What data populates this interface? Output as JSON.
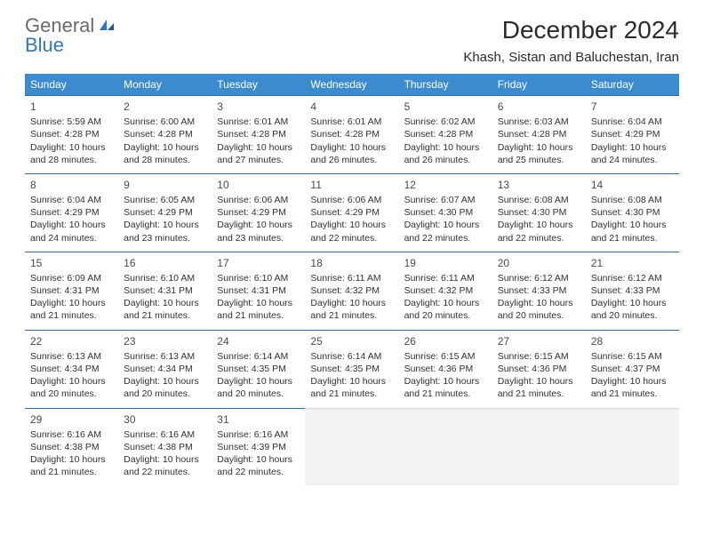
{
  "logo": {
    "text1": "General",
    "text2": "Blue"
  },
  "title": "December 2024",
  "location": "Khash, Sistan and Baluchestan, Iran",
  "colors": {
    "header_bg": "#3b8bce",
    "header_text": "#ffffff",
    "cell_border": "#2f6ea8",
    "empty_bg": "#f2f2f2",
    "body_text": "#303030",
    "logo_gray": "#6b6b6b",
    "logo_blue": "#2f78b9"
  },
  "columns": [
    "Sunday",
    "Monday",
    "Tuesday",
    "Wednesday",
    "Thursday",
    "Friday",
    "Saturday"
  ],
  "weeks": [
    [
      {
        "day": "1",
        "sunrise": "5:59 AM",
        "sunset": "4:28 PM",
        "daylight": "10 hours and 28 minutes."
      },
      {
        "day": "2",
        "sunrise": "6:00 AM",
        "sunset": "4:28 PM",
        "daylight": "10 hours and 28 minutes."
      },
      {
        "day": "3",
        "sunrise": "6:01 AM",
        "sunset": "4:28 PM",
        "daylight": "10 hours and 27 minutes."
      },
      {
        "day": "4",
        "sunrise": "6:01 AM",
        "sunset": "4:28 PM",
        "daylight": "10 hours and 26 minutes."
      },
      {
        "day": "5",
        "sunrise": "6:02 AM",
        "sunset": "4:28 PM",
        "daylight": "10 hours and 26 minutes."
      },
      {
        "day": "6",
        "sunrise": "6:03 AM",
        "sunset": "4:28 PM",
        "daylight": "10 hours and 25 minutes."
      },
      {
        "day": "7",
        "sunrise": "6:04 AM",
        "sunset": "4:29 PM",
        "daylight": "10 hours and 24 minutes."
      }
    ],
    [
      {
        "day": "8",
        "sunrise": "6:04 AM",
        "sunset": "4:29 PM",
        "daylight": "10 hours and 24 minutes."
      },
      {
        "day": "9",
        "sunrise": "6:05 AM",
        "sunset": "4:29 PM",
        "daylight": "10 hours and 23 minutes."
      },
      {
        "day": "10",
        "sunrise": "6:06 AM",
        "sunset": "4:29 PM",
        "daylight": "10 hours and 23 minutes."
      },
      {
        "day": "11",
        "sunrise": "6:06 AM",
        "sunset": "4:29 PM",
        "daylight": "10 hours and 22 minutes."
      },
      {
        "day": "12",
        "sunrise": "6:07 AM",
        "sunset": "4:30 PM",
        "daylight": "10 hours and 22 minutes."
      },
      {
        "day": "13",
        "sunrise": "6:08 AM",
        "sunset": "4:30 PM",
        "daylight": "10 hours and 22 minutes."
      },
      {
        "day": "14",
        "sunrise": "6:08 AM",
        "sunset": "4:30 PM",
        "daylight": "10 hours and 21 minutes."
      }
    ],
    [
      {
        "day": "15",
        "sunrise": "6:09 AM",
        "sunset": "4:31 PM",
        "daylight": "10 hours and 21 minutes."
      },
      {
        "day": "16",
        "sunrise": "6:10 AM",
        "sunset": "4:31 PM",
        "daylight": "10 hours and 21 minutes."
      },
      {
        "day": "17",
        "sunrise": "6:10 AM",
        "sunset": "4:31 PM",
        "daylight": "10 hours and 21 minutes."
      },
      {
        "day": "18",
        "sunrise": "6:11 AM",
        "sunset": "4:32 PM",
        "daylight": "10 hours and 21 minutes."
      },
      {
        "day": "19",
        "sunrise": "6:11 AM",
        "sunset": "4:32 PM",
        "daylight": "10 hours and 20 minutes."
      },
      {
        "day": "20",
        "sunrise": "6:12 AM",
        "sunset": "4:33 PM",
        "daylight": "10 hours and 20 minutes."
      },
      {
        "day": "21",
        "sunrise": "6:12 AM",
        "sunset": "4:33 PM",
        "daylight": "10 hours and 20 minutes."
      }
    ],
    [
      {
        "day": "22",
        "sunrise": "6:13 AM",
        "sunset": "4:34 PM",
        "daylight": "10 hours and 20 minutes."
      },
      {
        "day": "23",
        "sunrise": "6:13 AM",
        "sunset": "4:34 PM",
        "daylight": "10 hours and 20 minutes."
      },
      {
        "day": "24",
        "sunrise": "6:14 AM",
        "sunset": "4:35 PM",
        "daylight": "10 hours and 20 minutes."
      },
      {
        "day": "25",
        "sunrise": "6:14 AM",
        "sunset": "4:35 PM",
        "daylight": "10 hours and 21 minutes."
      },
      {
        "day": "26",
        "sunrise": "6:15 AM",
        "sunset": "4:36 PM",
        "daylight": "10 hours and 21 minutes."
      },
      {
        "day": "27",
        "sunrise": "6:15 AM",
        "sunset": "4:36 PM",
        "daylight": "10 hours and 21 minutes."
      },
      {
        "day": "28",
        "sunrise": "6:15 AM",
        "sunset": "4:37 PM",
        "daylight": "10 hours and 21 minutes."
      }
    ],
    [
      {
        "day": "29",
        "sunrise": "6:16 AM",
        "sunset": "4:38 PM",
        "daylight": "10 hours and 21 minutes."
      },
      {
        "day": "30",
        "sunrise": "6:16 AM",
        "sunset": "4:38 PM",
        "daylight": "10 hours and 22 minutes."
      },
      {
        "day": "31",
        "sunrise": "6:16 AM",
        "sunset": "4:39 PM",
        "daylight": "10 hours and 22 minutes."
      },
      null,
      null,
      null,
      null
    ]
  ]
}
